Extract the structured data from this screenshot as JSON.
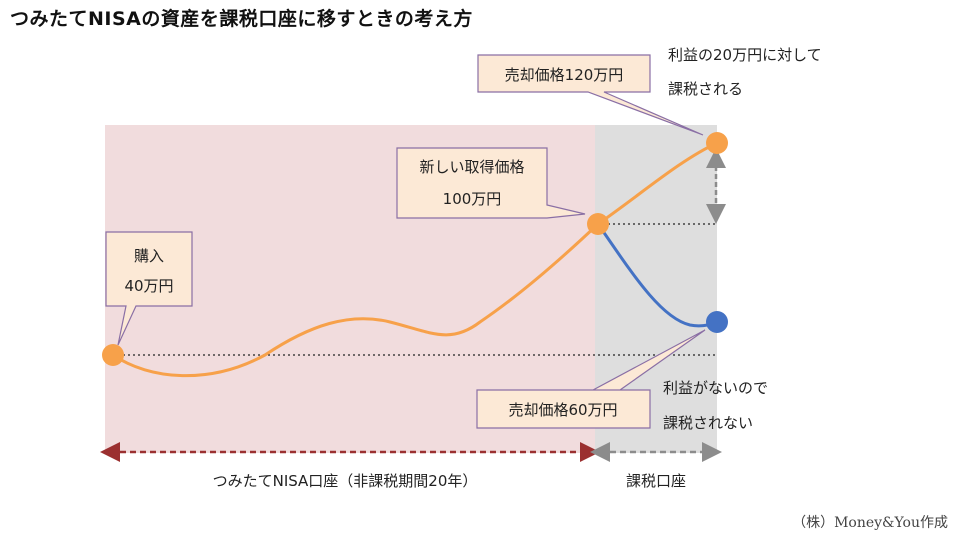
{
  "title": "つみたてNISAの資産を課税口座に移すときの考え方",
  "colors": {
    "nisa_bg": "#f1dcdd",
    "taxable_bg": "#dedede",
    "orange": "#f7a14a",
    "blue": "#4472c4",
    "callout_fill": "#fce9d6",
    "callout_border": "#8a6fa5",
    "nisa_arrow": "#9b3030",
    "taxable_arrow": "#8c8c8c"
  },
  "callouts": {
    "purchase": {
      "line1": "購入",
      "line2": "40万円"
    },
    "new_cost": {
      "line1": "新しい取得価格",
      "line2": "100万円"
    },
    "sale_high": {
      "line1": "売却価格120万円"
    },
    "sale_low": {
      "line1": "売却価格60万円"
    }
  },
  "notes": {
    "taxed": {
      "line1": "利益の20万円に対して",
      "line2": "課税される"
    },
    "not_taxed": {
      "line1": "利益がないので",
      "line2": "課税されない"
    }
  },
  "periods": {
    "nisa": "つみたてNISA口座（非課税期間20年）",
    "taxable": "課税口座"
  },
  "credit": "（株）Money&You作成"
}
